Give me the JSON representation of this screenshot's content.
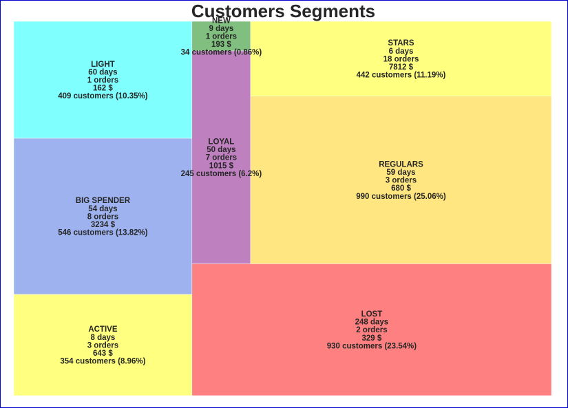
{
  "chart_data": {
    "type": "treemap",
    "title": "Customers Segments",
    "segments": [
      {
        "name": "LIGHT",
        "days": "60 days",
        "orders": "1 orders",
        "amount": "162 $",
        "customers": "409 customers (10.35%)",
        "count": 409,
        "color": "#80ffff"
      },
      {
        "name": "BIG SPENDER",
        "days": "54 days",
        "orders": "8 orders",
        "amount": "3234 $",
        "customers": "546 customers (13.82%)",
        "count": 546,
        "color": "#9db2ef"
      },
      {
        "name": "ACTIVE",
        "days": "8 days",
        "orders": "3 orders",
        "amount": "643 $",
        "customers": "354 customers (8.96%)",
        "count": 354,
        "color": "#ffff80"
      },
      {
        "name": "NEW",
        "days": "9 days",
        "orders": "1 orders",
        "amount": "193 $",
        "customers": "34 customers (0.86%)",
        "count": 34,
        "color": "#80bf80"
      },
      {
        "name": "LOYAL",
        "days": "50 days",
        "orders": "7 orders",
        "amount": "1015 $",
        "customers": "245 customers (6.2%)",
        "count": 245,
        "color": "#bf80bf"
      },
      {
        "name": "STARS",
        "days": "6 days",
        "orders": "18 orders",
        "amount": "7812 $",
        "customers": "442 customers (11.19%)",
        "count": 442,
        "color": "#ffff80"
      },
      {
        "name": "REGULARS",
        "days": "59 days",
        "orders": "3 orders",
        "amount": "680 $",
        "customers": "990 customers (25.06%)",
        "count": 990,
        "color": "#ffe680"
      },
      {
        "name": "LOST",
        "days": "248 days",
        "orders": "2 orders",
        "amount": "329 $",
        "customers": "930 customers (23.54%)",
        "count": 930,
        "color": "#ff8080"
      }
    ]
  }
}
